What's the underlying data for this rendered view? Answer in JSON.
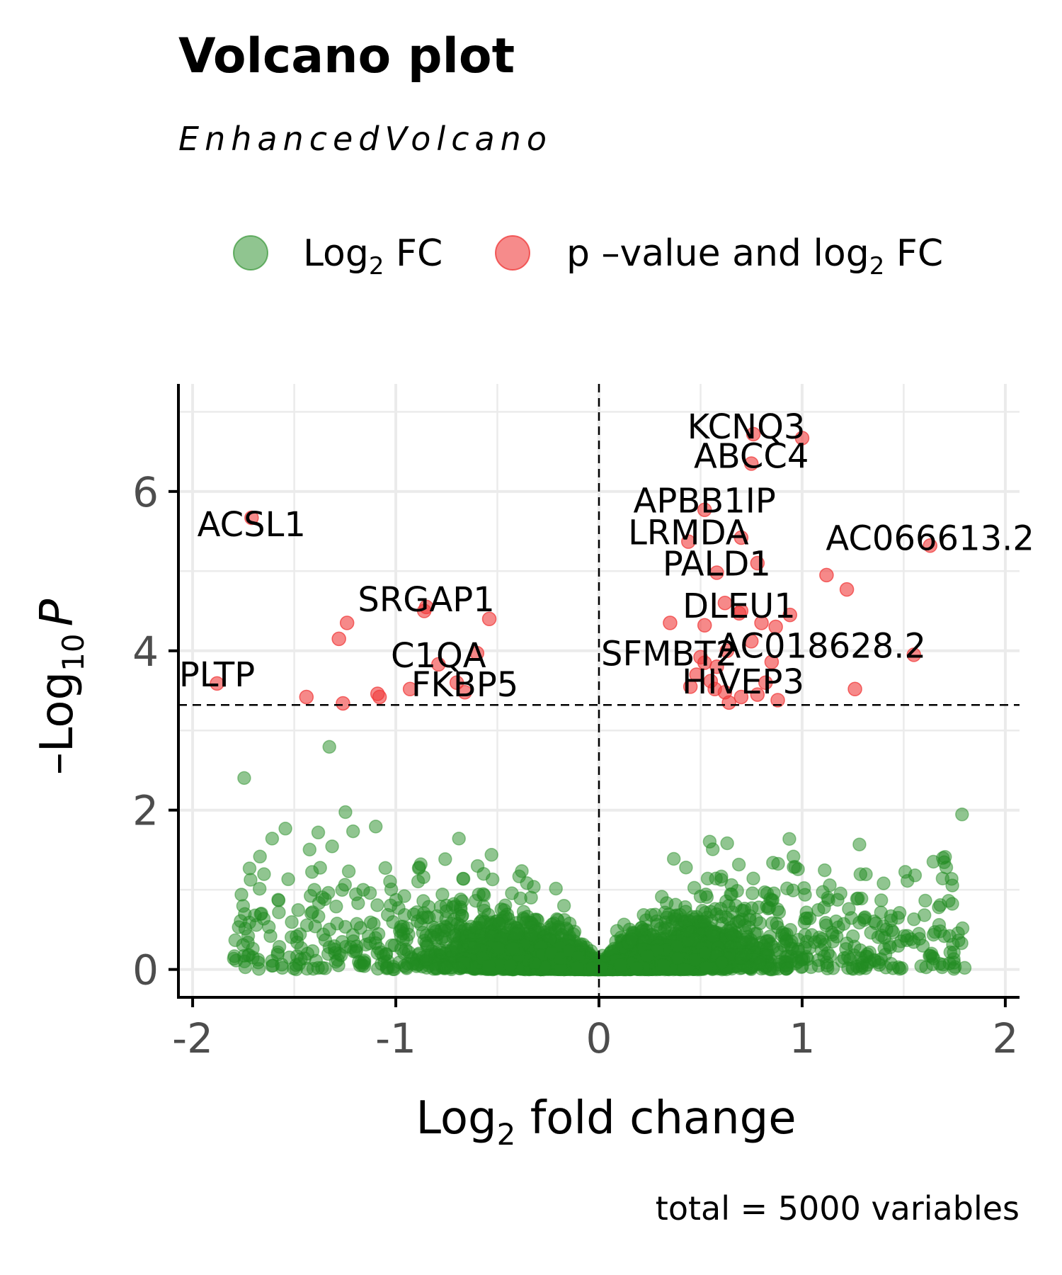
{
  "chart_data": {
    "type": "scatter",
    "title": "Volcano plot",
    "subtitle": "EnhancedVolcano",
    "xlabel": "Log2 fold change",
    "xlabel_main": "Log",
    "xlabel_sub": "2",
    "xlabel_rest": " fold change",
    "ylabel": "-Log10 P",
    "ylabel_main": "–Log",
    "ylabel_sub": "10",
    "ylabel_p": "P",
    "xlim": [
      -2.07,
      2.07
    ],
    "ylim": [
      -0.35,
      7.35
    ],
    "x_ticks": [
      "-2",
      "-1",
      "0",
      "1",
      "2"
    ],
    "x_tick_values": [
      -2,
      -1,
      0,
      1,
      2
    ],
    "y_ticks": [
      "0",
      "2",
      "4",
      "6"
    ],
    "y_tick_values": [
      0,
      2,
      4,
      6
    ],
    "grid": true,
    "cutoffs": {
      "x": 0,
      "y": 3.32
    },
    "caption": "total = 5000 variables",
    "legend": {
      "placement": "top",
      "items": [
        {
          "main": "Log",
          "sub": "2",
          "rest": " FC",
          "color": "#228B22"
        },
        {
          "main": "p –value and log",
          "sub": "2",
          "rest": " FC",
          "color": "#EE2C2C"
        }
      ]
    },
    "colors": {
      "ns_fc": "#228B22",
      "sig": "#F03A3A"
    },
    "background_point_count": 5000,
    "labeled_genes": [
      {
        "gene": "KCNQ3",
        "x": 0.76,
        "y": 6.72
      },
      {
        "gene": "ABCC4",
        "x": 0.75,
        "y": 6.35
      },
      {
        "gene": "ACSL1",
        "x": -1.71,
        "y": 5.67
      },
      {
        "gene": "APBB1IP",
        "x": 0.52,
        "y": 5.77
      },
      {
        "gene": "LRMDA",
        "x": 0.44,
        "y": 5.37
      },
      {
        "gene": "AC066613.2",
        "x": 1.63,
        "y": 5.32
      },
      {
        "gene": "PALD1",
        "x": 0.58,
        "y": 4.98
      },
      {
        "gene": "SRGAP1",
        "x": -0.85,
        "y": 4.55
      },
      {
        "gene": "DLEU1",
        "x": 0.69,
        "y": 4.47
      },
      {
        "gene": "C1QA",
        "x": -0.79,
        "y": 3.83
      },
      {
        "gene": "SFMBT2",
        "x": 0.52,
        "y": 3.85
      },
      {
        "gene": "AC018628.2",
        "x": 1.55,
        "y": 3.95
      },
      {
        "gene": "PLTP",
        "x": -1.88,
        "y": 3.59
      },
      {
        "gene": "FKBP5",
        "x": -0.66,
        "y": 3.48
      },
      {
        "gene": "HIVEP3",
        "x": 0.57,
        "y": 3.52
      }
    ],
    "significant_points": [
      {
        "x": 1.0,
        "y": 6.67
      },
      {
        "x": 0.7,
        "y": 5.42
      },
      {
        "x": 0.78,
        "y": 5.1
      },
      {
        "x": 1.12,
        "y": 4.95
      },
      {
        "x": 1.22,
        "y": 4.77
      },
      {
        "x": 0.62,
        "y": 4.6
      },
      {
        "x": 0.7,
        "y": 4.5
      },
      {
        "x": 0.35,
        "y": 4.35
      },
      {
        "x": 0.52,
        "y": 4.32
      },
      {
        "x": 0.8,
        "y": 4.35
      },
      {
        "x": 0.87,
        "y": 4.3
      },
      {
        "x": 0.94,
        "y": 4.45
      },
      {
        "x": 0.75,
        "y": 4.12
      },
      {
        "x": 0.63,
        "y": 4.0
      },
      {
        "x": 0.5,
        "y": 3.92
      },
      {
        "x": 0.58,
        "y": 3.8
      },
      {
        "x": 0.85,
        "y": 3.86
      },
      {
        "x": 0.48,
        "y": 3.7
      },
      {
        "x": 0.45,
        "y": 3.55
      },
      {
        "x": 0.62,
        "y": 3.48
      },
      {
        "x": 0.7,
        "y": 3.42
      },
      {
        "x": 0.78,
        "y": 3.45
      },
      {
        "x": 0.88,
        "y": 3.38
      },
      {
        "x": 0.64,
        "y": 3.35
      },
      {
        "x": 0.82,
        "y": 3.6
      },
      {
        "x": 1.26,
        "y": 3.52
      },
      {
        "x": 0.55,
        "y": 3.62
      },
      {
        "x": -1.24,
        "y": 4.35
      },
      {
        "x": -1.28,
        "y": 4.15
      },
      {
        "x": -0.86,
        "y": 4.5
      },
      {
        "x": -0.54,
        "y": 4.4
      },
      {
        "x": -0.6,
        "y": 3.97
      },
      {
        "x": -1.44,
        "y": 3.42
      },
      {
        "x": -1.26,
        "y": 3.34
      },
      {
        "x": -1.09,
        "y": 3.46
      },
      {
        "x": -1.08,
        "y": 3.42
      },
      {
        "x": -0.93,
        "y": 3.52
      },
      {
        "x": -0.7,
        "y": 3.6
      }
    ]
  }
}
